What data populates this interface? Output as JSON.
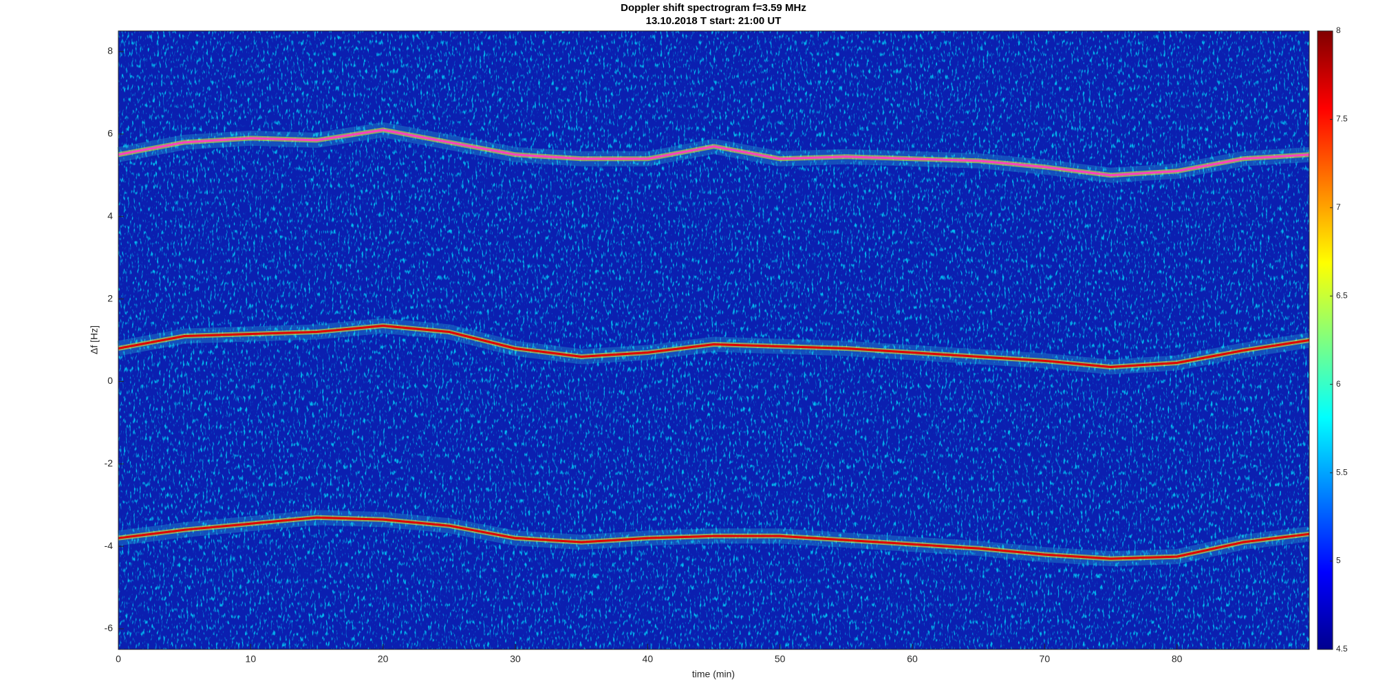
{
  "chart_data": {
    "type": "line",
    "title": "Doppler shift spectrogram f=3.59 MHz",
    "subtitle": "13.10.2018   T start: 21:00 UT",
    "x_label": "time (min)",
    "y_label": "Δf [Hz]",
    "x": [
      0,
      5,
      10,
      15,
      20,
      25,
      30,
      35,
      40,
      45,
      50,
      55,
      60,
      65,
      70,
      75,
      80,
      85,
      90
    ],
    "series": [
      {
        "color": "#ff40c0",
        "values": [
          5.5,
          5.8,
          5.9,
          5.85,
          6.1,
          5.8,
          5.5,
          5.4,
          5.4,
          5.7,
          5.4,
          5.45,
          5.4,
          5.35,
          5.2,
          5.0,
          5.1,
          5.4,
          5.5
        ]
      },
      {
        "color": "#e00000",
        "values": [
          0.8,
          1.1,
          1.15,
          1.2,
          1.35,
          1.2,
          0.8,
          0.6,
          0.7,
          0.9,
          0.85,
          0.8,
          0.7,
          0.6,
          0.5,
          0.35,
          0.45,
          0.75,
          1.0
        ]
      },
      {
        "color": "#e00000",
        "values": [
          -3.8,
          -3.6,
          -3.45,
          -3.3,
          -3.35,
          -3.5,
          -3.8,
          -3.9,
          -3.8,
          -3.75,
          -3.75,
          -3.85,
          -3.95,
          -4.05,
          -4.2,
          -4.3,
          -4.25,
          -3.9,
          -3.7
        ]
      }
    ],
    "xlim": [
      0,
      90
    ],
    "xticks": [
      0,
      10,
      20,
      30,
      40,
      50,
      60,
      70,
      80
    ],
    "ylim": [
      -6.5,
      8.5
    ],
    "yticks": [
      -6,
      -4,
      -2,
      0,
      2,
      4,
      6,
      8
    ],
    "colormap": "jet",
    "clim": [
      4.5,
      8
    ],
    "cticks": [
      4.5,
      5,
      5.5,
      6,
      6.5,
      7,
      7.5,
      8
    ],
    "background": "#0b1fb0"
  }
}
